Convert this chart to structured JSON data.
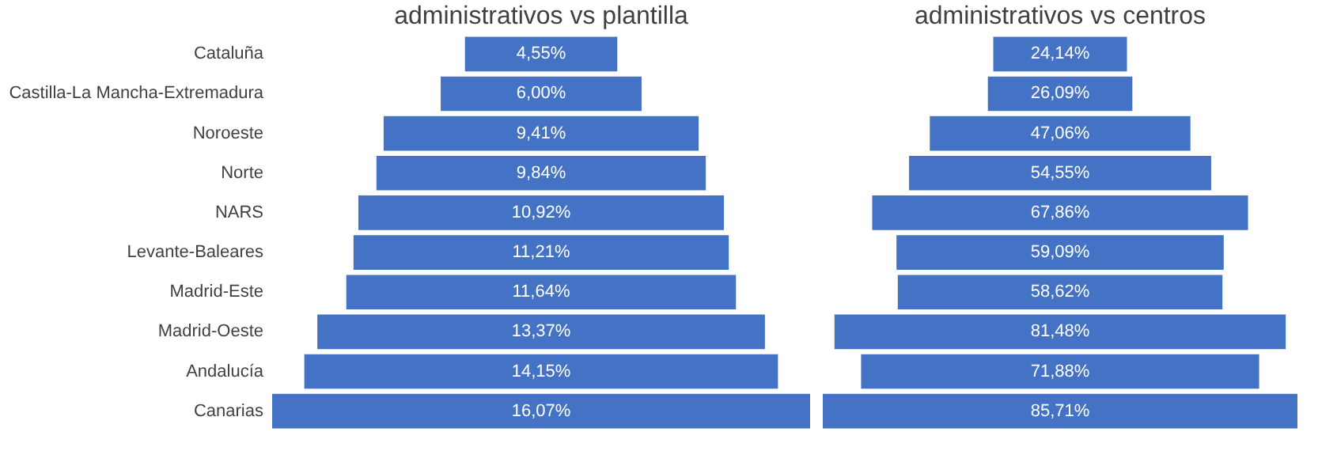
{
  "chart_data": [
    {
      "type": "other",
      "title": "administrativos vs plantilla",
      "categories": [
        "Cataluña",
        "Castilla-La Mancha-Extremadura",
        "Noroeste",
        "Norte",
        "NARS",
        "Levante-Baleares",
        "Madrid-Este",
        "Madrid-Oeste",
        "Andalucía",
        "Canarias"
      ],
      "values": [
        4.55,
        6.0,
        9.41,
        9.84,
        10.92,
        11.21,
        11.64,
        13.37,
        14.15,
        16.07
      ],
      "value_labels": [
        "4,55%",
        "6,00%",
        "9,41%",
        "9,84%",
        "10,92%",
        "11,21%",
        "11,64%",
        "13,37%",
        "14,15%",
        "16,07%"
      ],
      "color": "#4472c4"
    },
    {
      "type": "other",
      "title": "administrativos vs centros",
      "categories": [
        null,
        null,
        null,
        null,
        null,
        null,
        null,
        null,
        null,
        null
      ],
      "values": [
        24.14,
        26.09,
        47.06,
        54.55,
        67.86,
        59.09,
        58.62,
        81.48,
        71.88,
        85.71
      ],
      "value_labels": [
        "24,14%",
        "26,09%",
        "47,06%",
        "54,55%",
        "67,86%",
        "59,09%",
        "58,62%",
        "81,48%",
        "71,88%",
        "85,71%"
      ],
      "color": "#4472c4"
    }
  ]
}
